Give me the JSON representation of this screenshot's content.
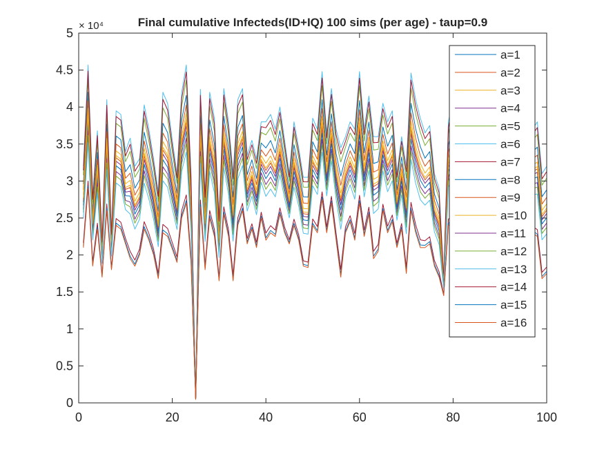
{
  "chart_data": {
    "type": "line",
    "title": "Final cumulative Infecteds(ID+IQ) 100 sims (per age) - taup=0.9",
    "xlabel": "",
    "ylabel": "",
    "exponent_label": "× 10⁴",
    "xlim": [
      0,
      100
    ],
    "ylim": [
      0,
      50000
    ],
    "xticks": [
      "0",
      "20",
      "40",
      "60",
      "80",
      "100"
    ],
    "yticks": [
      "0",
      "0.5",
      "1",
      "1.5",
      "2",
      "2.5",
      "3",
      "3.5",
      "4",
      "4.5",
      "5"
    ],
    "grid": false,
    "legend_position": "top-right",
    "x": [
      1,
      2,
      3,
      4,
      5,
      6,
      7,
      8,
      9,
      10,
      11,
      12,
      13,
      14,
      15,
      16,
      17,
      18,
      19,
      20,
      21,
      22,
      23,
      24,
      25,
      26,
      27,
      28,
      29,
      30,
      31,
      32,
      33,
      34,
      35,
      36,
      37,
      38,
      39,
      40,
      41,
      42,
      43,
      44,
      45,
      46,
      47,
      48,
      49,
      50,
      51,
      52,
      53,
      54,
      55,
      56,
      57,
      58,
      59,
      60,
      61,
      62,
      63,
      64,
      65,
      66,
      67,
      68,
      69,
      70,
      71,
      72,
      73,
      74,
      75,
      76,
      77,
      78,
      79,
      80,
      81,
      82,
      83,
      84,
      85,
      86,
      87,
      88,
      89,
      90,
      91,
      92,
      93,
      94,
      95,
      96,
      97,
      98,
      99,
      100
    ],
    "top_series_values": [
      32000,
      45700,
      28000,
      36800,
      22000,
      41000,
      23000,
      39500,
      39000,
      34000,
      35800,
      32000,
      33000,
      40300,
      37000,
      33000,
      28500,
      42000,
      40500,
      35500,
      31000,
      42000,
      45700,
      31000,
      500,
      42400,
      28300,
      42000,
      38500,
      25000,
      42500,
      38000,
      31000,
      41000,
      42500,
      33500,
      35500,
      33000,
      38000,
      38000,
      39000,
      37000,
      40000,
      35500,
      31000,
      38000,
      34500,
      30500,
      30500,
      38500,
      37000,
      44800,
      36500,
      42500,
      37000,
      34500,
      36000,
      38000,
      37000,
      44800,
      37000,
      41500,
      36000,
      36000,
      40500,
      38000,
      39500,
      31000,
      36000,
      32000,
      44600,
      41000,
      38500,
      36500,
      37500,
      31000,
      29000,
      17000,
      38000,
      41500,
      38000,
      33500,
      39000,
      37500,
      38000,
      33000,
      37000,
      38000,
      32000,
      35500,
      32500,
      36000,
      40000,
      35000,
      34500,
      35500,
      37000,
      38000,
      31000,
      32000
    ],
    "bottom_series_values": [
      21000,
      29000,
      18500,
      23500,
      17000,
      26000,
      18000,
      24000,
      23500,
      21500,
      19500,
      18500,
      20000,
      23500,
      22000,
      20000,
      16800,
      23000,
      22500,
      20800,
      19000,
      25000,
      27000,
      19000,
      500,
      26500,
      18000,
      25000,
      22500,
      16500,
      25500,
      22500,
      16500,
      24000,
      26000,
      21500,
      23500,
      21000,
      25000,
      22000,
      23000,
      22500,
      25500,
      23000,
      21500,
      24000,
      22000,
      18500,
      18300,
      24000,
      23000,
      27500,
      23000,
      27000,
      22000,
      17000,
      23000,
      24500,
      22000,
      27000,
      22500,
      25500,
      19500,
      20500,
      26000,
      23000,
      24500,
      21000,
      23500,
      17500,
      26000,
      23000,
      21000,
      21000,
      21500,
      18500,
      17000,
      14500,
      24000,
      24500,
      23500,
      20000,
      23500,
      22500,
      23500,
      20000,
      23500,
      24000,
      19500,
      22000,
      19000,
      22000,
      24500,
      21500,
      21500,
      22000,
      23000,
      22500,
      16800,
      17500
    ],
    "series": [
      {
        "name": "a=1",
        "color": "#0072BD",
        "scale": 0.78
      },
      {
        "name": "a=2",
        "color": "#D95319",
        "scale": 0.71
      },
      {
        "name": "a=3",
        "color": "#EDB120",
        "scale": 0.65
      },
      {
        "name": "a=4",
        "color": "#7E2F8E",
        "scale": 0.56
      },
      {
        "name": "a=5",
        "color": "#77AC30",
        "scale": 0.89
      },
      {
        "name": "a=6",
        "color": "#4DBEEE",
        "scale": 1.0
      },
      {
        "name": "a=7",
        "color": "#A2142F",
        "scale": 0.95
      },
      {
        "name": "a=8",
        "color": "#0072BD",
        "scale": 0.52
      },
      {
        "name": "a=9",
        "color": "#D95319",
        "scale": 0.59
      },
      {
        "name": "a=10",
        "color": "#EDB120",
        "scale": 0.61
      },
      {
        "name": "a=11",
        "color": "#7E2F8E",
        "scale": 0.47
      },
      {
        "name": "a=12",
        "color": "#77AC30",
        "scale": 0.43
      },
      {
        "name": "a=13",
        "color": "#4DBEEE",
        "scale": 0.37
      },
      {
        "name": "a=14",
        "color": "#A2142F",
        "scale": 0.06
      },
      {
        "name": "a=15",
        "color": "#0072BD",
        "scale": 0.02
      },
      {
        "name": "a=16",
        "color": "#D95319",
        "scale": 0.0
      }
    ]
  }
}
